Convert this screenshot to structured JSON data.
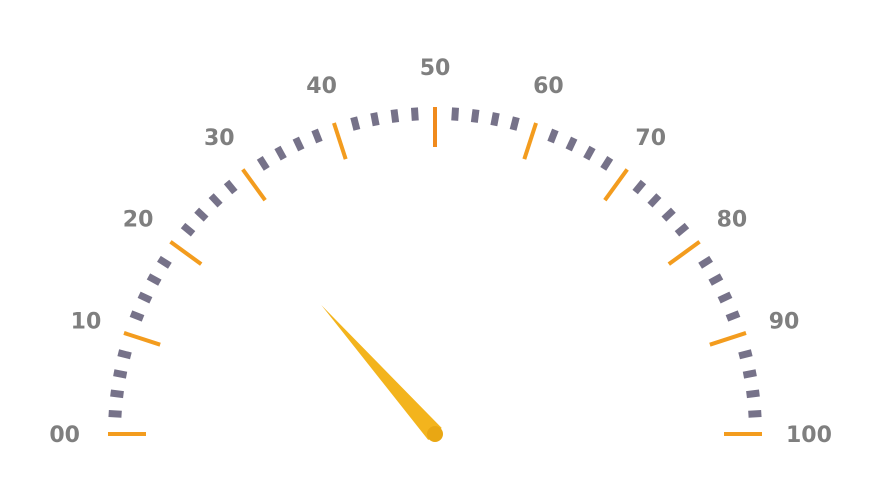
{
  "chart_data": {
    "type": "gauge",
    "min": 0,
    "max": 100,
    "value": 27,
    "major_step": 10,
    "minor_ticks_per_major": 4,
    "tick_labels": [
      "00",
      "10",
      "20",
      "30",
      "40",
      "50",
      "60",
      "70",
      "80",
      "90",
      "100"
    ],
    "colors": {
      "major_tick": "#f39c1e",
      "center_tick": "#f08a1c",
      "minor_tick": "#767289",
      "label": "#7f7f7f",
      "needle": "#f3b41d",
      "needle_dark": "#e9a713"
    }
  }
}
